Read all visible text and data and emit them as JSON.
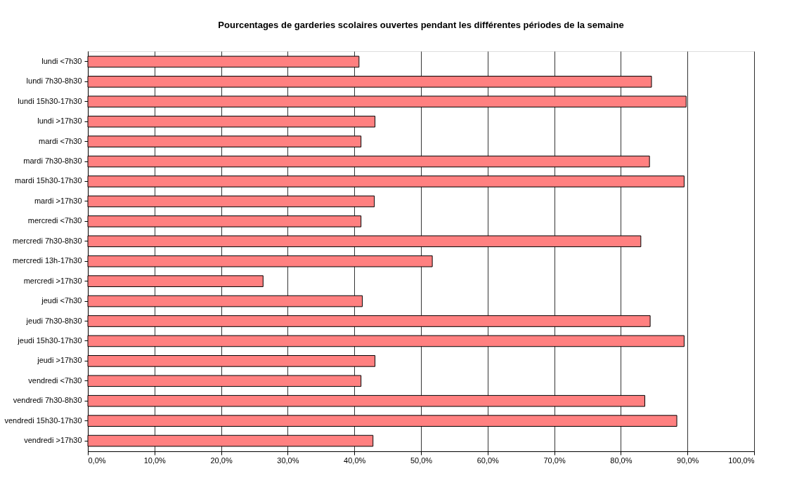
{
  "chart_data": {
    "type": "bar",
    "orientation": "horizontal",
    "title": "Pourcentages de garderies scolaires ouvertes pendant les différentes périodes de la semaine",
    "categories": [
      "lundi <7h30",
      "lundi 7h30-8h30",
      "lundi 15h30-17h30",
      "lundi >17h30",
      "mardi <7h30",
      "mardi 7h30-8h30",
      "mardi 15h30-17h30",
      "mardi >17h30",
      "mercredi <7h30",
      "mercredi 7h30-8h30",
      "mercredi 13h-17h30",
      "mercredi >17h30",
      "jeudi <7h30",
      "jeudi 7h30-8h30",
      "jeudi 15h30-17h30",
      "jeudi >17h30",
      "vendredi <7h30",
      "vendredi 7h30-8h30",
      "vendredi 15h30-17h30",
      "vendredi >17h30"
    ],
    "values": [
      40.7,
      84.6,
      89.8,
      43.1,
      41.0,
      84.3,
      89.5,
      43.0,
      41.0,
      83.0,
      51.7,
      26.3,
      41.2,
      84.4,
      89.5,
      43.1,
      41.0,
      83.6,
      88.4,
      42.8
    ],
    "color": "#ff8080",
    "xlim": [
      0,
      100
    ],
    "xticks": [
      {
        "value": 0,
        "label": "0,0%"
      },
      {
        "value": 10,
        "label": "10,0%"
      },
      {
        "value": 20,
        "label": "20,0%"
      },
      {
        "value": 30,
        "label": "30,0%"
      },
      {
        "value": 40,
        "label": "40,0%"
      },
      {
        "value": 50,
        "label": "50,0%"
      },
      {
        "value": 60,
        "label": "60,0%"
      },
      {
        "value": 70,
        "label": "70,0%"
      },
      {
        "value": 80,
        "label": "80,0%"
      },
      {
        "value": 90,
        "label": "90,0%"
      },
      {
        "value": 100,
        "label": "100,0%"
      }
    ],
    "grid": "x"
  }
}
